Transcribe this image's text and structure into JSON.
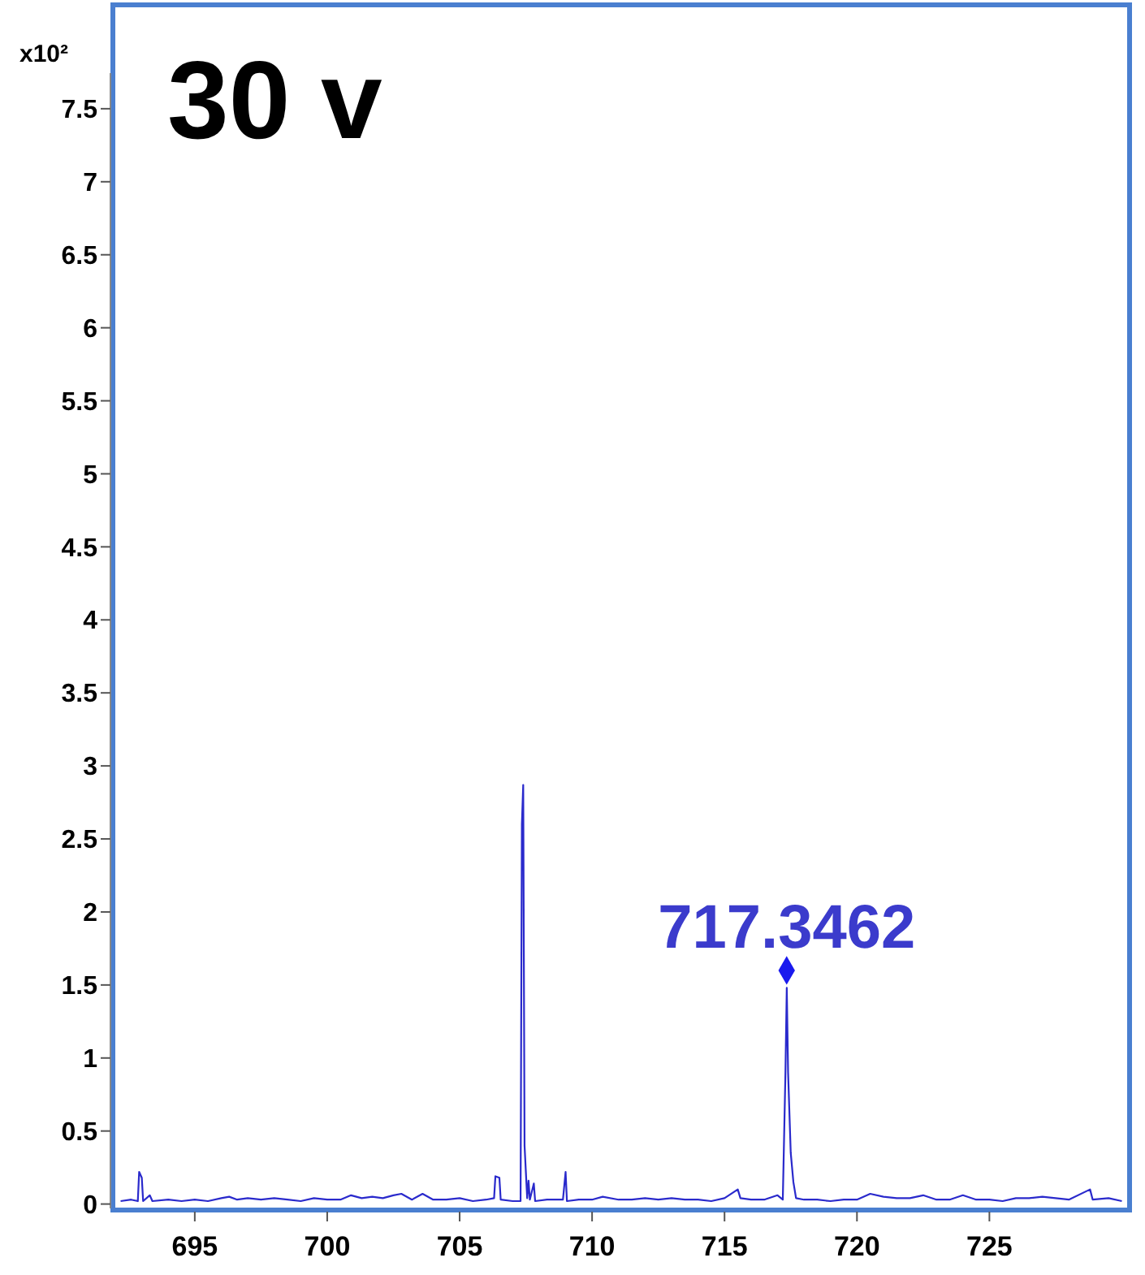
{
  "chart_data": {
    "type": "line",
    "title": "30 v",
    "ylabel": "x10²",
    "xlim": [
      692,
      730.2
    ],
    "xticks": [
      695,
      700,
      705,
      710,
      715,
      720,
      725
    ],
    "ylim": [
      -0.03,
      8.2
    ],
    "yticks": [
      0,
      0.5,
      1,
      1.5,
      2,
      2.5,
      3,
      3.5,
      4,
      4.5,
      5,
      5.5,
      6,
      6.5,
      7,
      7.5
    ],
    "annotations": [
      {
        "text": "717.3462",
        "x": 717.3462,
        "y": 1.6
      }
    ],
    "series": [
      {
        "color": "#2a2acc",
        "x": [
          692.2,
          692.6,
          692.85,
          692.9,
          693.0,
          693.05,
          693.3,
          693.4,
          694,
          694.5,
          695,
          695.5,
          696,
          696.3,
          696.6,
          697,
          697.5,
          698,
          698.5,
          699,
          699.5,
          700,
          700.5,
          700.9,
          701.3,
          701.7,
          702.1,
          702.5,
          702.8,
          703.2,
          703.6,
          704,
          704.5,
          705,
          705.5,
          706,
          706.3,
          706.35,
          706.5,
          706.55,
          707.0,
          707.3,
          707.35,
          707.4,
          707.45,
          707.55,
          707.6,
          707.65,
          707.8,
          707.85,
          708.3,
          708.9,
          709.0,
          709.05,
          709.5,
          710,
          710.4,
          711,
          711.5,
          712,
          712.5,
          713,
          713.5,
          714,
          714.5,
          715,
          715.5,
          715.6,
          716,
          716.5,
          717.0,
          717.2,
          717.3,
          717.35,
          717.4,
          717.5,
          717.6,
          717.7,
          718,
          718.5,
          719,
          719.5,
          720,
          720.5,
          721,
          721.5,
          722,
          722.5,
          723,
          723.5,
          724,
          724.5,
          725,
          725.5,
          726,
          726.5,
          727,
          727.5,
          728,
          728.8,
          728.9,
          729.5,
          730
        ],
        "values": [
          0.02,
          0.03,
          0.02,
          0.22,
          0.18,
          0.02,
          0.06,
          0.02,
          0.03,
          0.02,
          0.03,
          0.02,
          0.04,
          0.05,
          0.03,
          0.04,
          0.03,
          0.04,
          0.03,
          0.02,
          0.04,
          0.03,
          0.03,
          0.06,
          0.04,
          0.05,
          0.04,
          0.06,
          0.07,
          0.03,
          0.07,
          0.03,
          0.03,
          0.04,
          0.02,
          0.03,
          0.04,
          0.19,
          0.18,
          0.03,
          0.02,
          0.02,
          2.6,
          2.87,
          0.4,
          0.04,
          0.16,
          0.03,
          0.14,
          0.02,
          0.03,
          0.03,
          0.22,
          0.02,
          0.03,
          0.03,
          0.05,
          0.03,
          0.03,
          0.04,
          0.03,
          0.04,
          0.03,
          0.03,
          0.02,
          0.04,
          0.1,
          0.04,
          0.03,
          0.03,
          0.06,
          0.03,
          0.9,
          1.48,
          0.9,
          0.35,
          0.15,
          0.04,
          0.03,
          0.03,
          0.02,
          0.03,
          0.03,
          0.07,
          0.05,
          0.04,
          0.04,
          0.06,
          0.03,
          0.03,
          0.06,
          0.03,
          0.03,
          0.02,
          0.04,
          0.04,
          0.05,
          0.04,
          0.03,
          0.1,
          0.03,
          0.04,
          0.02
        ]
      },
      {
        "type": "scatter",
        "color": "#1a1aee",
        "marker": "diamond",
        "x": [
          717.3462
        ],
        "values": [
          1.6
        ]
      }
    ]
  }
}
